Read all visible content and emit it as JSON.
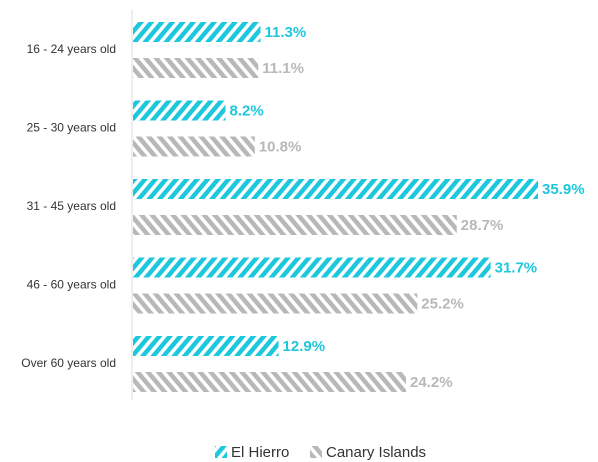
{
  "chart_data": {
    "type": "bar",
    "orientation": "horizontal",
    "categories": [
      "16 - 24 years old",
      "25 - 30 years old",
      "31 - 45 years old",
      "46 - 60 years old",
      "Over 60 years old"
    ],
    "series": [
      {
        "name": "El Hierro",
        "color": "#1ec8dc",
        "values": [
          11.3,
          8.2,
          35.9,
          31.7,
          12.9
        ],
        "value_labels": [
          "11.3%",
          "8.2%",
          "35.9%",
          "31.7%",
          "12.9%"
        ]
      },
      {
        "name": "Canary Islands",
        "color": "#b8b8b8",
        "values": [
          11.1,
          10.8,
          28.7,
          25.2,
          24.2
        ],
        "value_labels": [
          "11.1%",
          "10.8%",
          "28.7%",
          "25.2%",
          "24.2%"
        ]
      }
    ],
    "legend": "bottom"
  }
}
